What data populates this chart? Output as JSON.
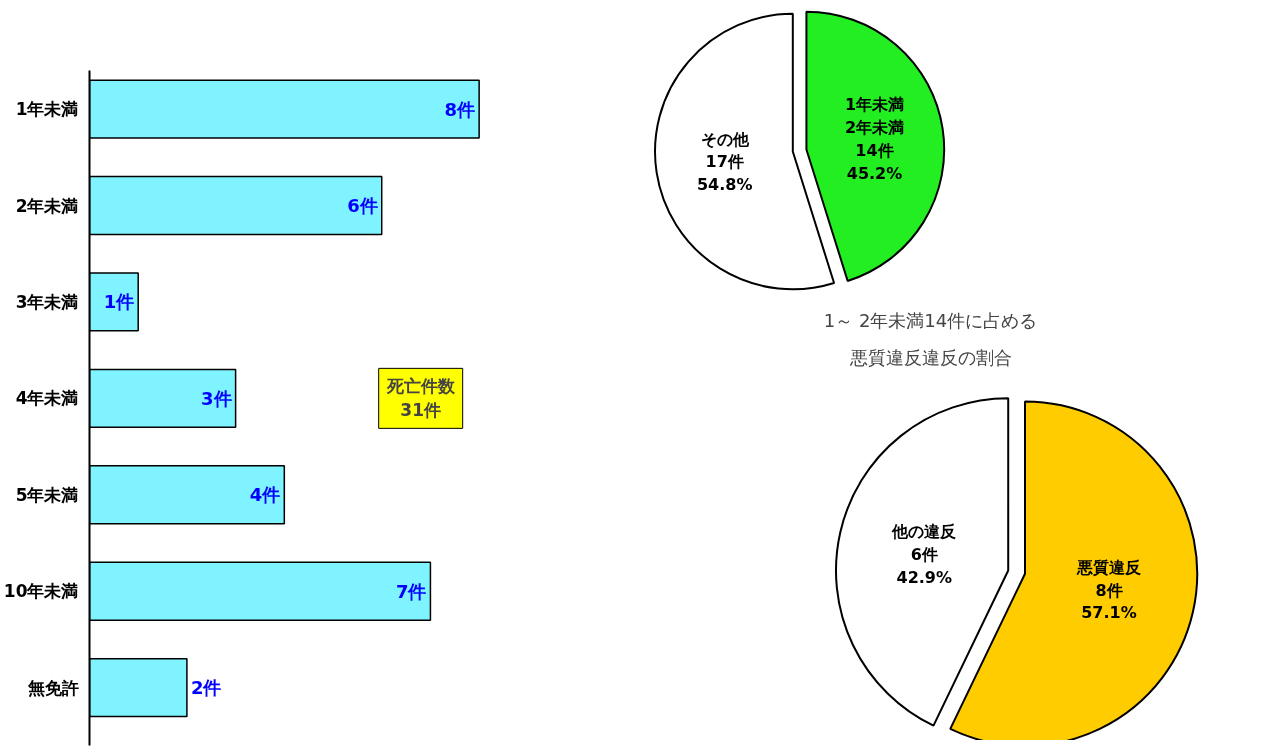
{
  "chart_data": [
    {
      "type": "bar",
      "orientation": "horizontal",
      "categories": [
        "1年未満",
        "2年未満",
        "3年未満",
        "4年未満",
        "5年未満",
        "10年未満",
        "無免許"
      ],
      "values": [
        8,
        6,
        1,
        3,
        4,
        7,
        2
      ],
      "color": "#7ff3ff",
      "value_labels": [
        "8件",
        "6件",
        "1件",
        "3件",
        "4件",
        "7件",
        "2件"
      ],
      "annotations": [
        "死亡件数\n31件"
      ]
    },
    {
      "type": "pie",
      "categories": [
        "1年未満\n2年未満",
        "その他"
      ],
      "values": [
        14,
        17
      ],
      "colors": [
        "#22ee22",
        "#ffffff"
      ],
      "value_labels": [
        "14件\n45.2%",
        "17件\n54.8%"
      ]
    },
    {
      "type": "pie",
      "title": "1～ 2年未満14件に占める",
      "subtitle": "悪質違反違反の割合",
      "categories": [
        "悪質違反",
        "他の違反"
      ],
      "values": [
        8,
        6
      ],
      "colors": [
        "#ffcc00",
        "#ffffff"
      ],
      "value_labels": [
        "8件\n57.1%",
        "6件\n42.9%"
      ]
    }
  ]
}
